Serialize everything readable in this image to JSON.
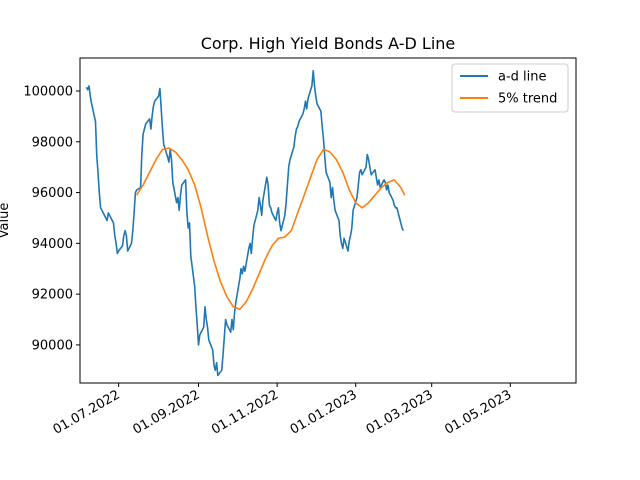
{
  "chart_data": {
    "type": "line",
    "title": "Corp. High Yield Bonds A-D Line",
    "xlabel": "",
    "ylabel": "Value",
    "x_range": [
      "2022-06-01",
      "2023-06-21"
    ],
    "ylim": [
      88500,
      101300
    ],
    "grid": false,
    "legend_position": "top-right",
    "x_ticks": [
      {
        "date": "2022-07-01",
        "label": "01.07.2022"
      },
      {
        "date": "2022-09-01",
        "label": "01.09.2022"
      },
      {
        "date": "2022-11-01",
        "label": "01.11.2022"
      },
      {
        "date": "2023-01-01",
        "label": "01.01.2023"
      },
      {
        "date": "2023-03-01",
        "label": "01.03.2023"
      },
      {
        "date": "2023-05-01",
        "label": "01.05.2023"
      }
    ],
    "y_ticks": [
      {
        "value": 90000,
        "label": "90000"
      },
      {
        "value": 92000,
        "label": "92000"
      },
      {
        "value": 94000,
        "label": "94000"
      },
      {
        "value": 96000,
        "label": "96000"
      },
      {
        "value": 98000,
        "label": "98000"
      },
      {
        "value": 100000,
        "label": "100000"
      }
    ],
    "series": [
      {
        "name": "a-d line",
        "color": "#1f77b4",
        "points": [
          [
            "2022-06-06",
            100150
          ],
          [
            "2022-06-07",
            100050
          ],
          [
            "2022-06-08",
            100200
          ],
          [
            "2022-06-09",
            99800
          ],
          [
            "2022-06-10",
            99500
          ],
          [
            "2022-06-13",
            98800
          ],
          [
            "2022-06-14",
            97500
          ],
          [
            "2022-06-15",
            96800
          ],
          [
            "2022-06-16",
            96000
          ],
          [
            "2022-06-17",
            95400
          ],
          [
            "2022-06-20",
            95100
          ],
          [
            "2022-06-21",
            95000
          ],
          [
            "2022-06-22",
            94900
          ],
          [
            "2022-06-23",
            95200
          ],
          [
            "2022-06-24",
            95100
          ],
          [
            "2022-06-27",
            94800
          ],
          [
            "2022-06-28",
            94300
          ],
          [
            "2022-06-29",
            94000
          ],
          [
            "2022-06-30",
            93600
          ],
          [
            "2022-07-01",
            93700
          ],
          [
            "2022-07-04",
            93900
          ],
          [
            "2022-07-05",
            94300
          ],
          [
            "2022-07-06",
            94500
          ],
          [
            "2022-07-07",
            94300
          ],
          [
            "2022-07-08",
            93700
          ],
          [
            "2022-07-11",
            94000
          ],
          [
            "2022-07-12",
            94500
          ],
          [
            "2022-07-13",
            95200
          ],
          [
            "2022-07-14",
            96000
          ],
          [
            "2022-07-15",
            96100
          ],
          [
            "2022-07-18",
            96200
          ],
          [
            "2022-07-19",
            97500
          ],
          [
            "2022-07-20",
            98300
          ],
          [
            "2022-07-21",
            98500
          ],
          [
            "2022-07-22",
            98700
          ],
          [
            "2022-07-25",
            98900
          ],
          [
            "2022-07-26",
            98500
          ],
          [
            "2022-07-27",
            99000
          ],
          [
            "2022-07-28",
            99400
          ],
          [
            "2022-07-29",
            99600
          ],
          [
            "2022-08-01",
            99800
          ],
          [
            "2022-08-02",
            100100
          ],
          [
            "2022-08-03",
            99300
          ],
          [
            "2022-08-04",
            98500
          ],
          [
            "2022-08-05",
            97900
          ],
          [
            "2022-08-08",
            97400
          ],
          [
            "2022-08-09",
            97200
          ],
          [
            "2022-08-10",
            97700
          ],
          [
            "2022-08-11",
            97300
          ],
          [
            "2022-08-12",
            96400
          ],
          [
            "2022-08-15",
            95600
          ],
          [
            "2022-08-16",
            95800
          ],
          [
            "2022-08-17",
            95300
          ],
          [
            "2022-08-18",
            95900
          ],
          [
            "2022-08-19",
            96300
          ],
          [
            "2022-08-22",
            96500
          ],
          [
            "2022-08-23",
            95200
          ],
          [
            "2022-08-24",
            94600
          ],
          [
            "2022-08-25",
            94800
          ],
          [
            "2022-08-26",
            93500
          ],
          [
            "2022-08-29",
            92300
          ],
          [
            "2022-08-30",
            91500
          ],
          [
            "2022-08-31",
            90800
          ],
          [
            "2022-09-01",
            90000
          ],
          [
            "2022-09-02",
            90400
          ],
          [
            "2022-09-05",
            90700
          ],
          [
            "2022-09-06",
            91500
          ],
          [
            "2022-09-07",
            91000
          ],
          [
            "2022-09-08",
            90700
          ],
          [
            "2022-09-09",
            90200
          ],
          [
            "2022-09-12",
            89800
          ],
          [
            "2022-09-13",
            89200
          ],
          [
            "2022-09-14",
            89000
          ],
          [
            "2022-09-15",
            89300
          ],
          [
            "2022-09-16",
            88800
          ],
          [
            "2022-09-19",
            89000
          ],
          [
            "2022-09-20",
            89600
          ],
          [
            "2022-09-21",
            90300
          ],
          [
            "2022-09-22",
            91000
          ],
          [
            "2022-09-23",
            90800
          ],
          [
            "2022-09-26",
            90500
          ],
          [
            "2022-09-27",
            91000
          ],
          [
            "2022-09-28",
            90600
          ],
          [
            "2022-09-29",
            91300
          ],
          [
            "2022-09-30",
            91700
          ],
          [
            "2022-10-03",
            92600
          ],
          [
            "2022-10-04",
            93000
          ],
          [
            "2022-10-05",
            92800
          ],
          [
            "2022-10-06",
            93100
          ],
          [
            "2022-10-07",
            92900
          ],
          [
            "2022-10-10",
            93800
          ],
          [
            "2022-10-11",
            94000
          ],
          [
            "2022-10-12",
            93600
          ],
          [
            "2022-10-13",
            94200
          ],
          [
            "2022-10-14",
            94700
          ],
          [
            "2022-10-17",
            95300
          ],
          [
            "2022-10-18",
            95800
          ],
          [
            "2022-10-19",
            95500
          ],
          [
            "2022-10-20",
            95100
          ],
          [
            "2022-10-21",
            95700
          ],
          [
            "2022-10-24",
            96600
          ],
          [
            "2022-10-25",
            96300
          ],
          [
            "2022-10-26",
            95500
          ],
          [
            "2022-10-27",
            95400
          ],
          [
            "2022-10-28",
            95200
          ],
          [
            "2022-10-31",
            94900
          ],
          [
            "2022-11-01",
            95200
          ],
          [
            "2022-11-02",
            95400
          ],
          [
            "2022-11-03",
            94800
          ],
          [
            "2022-11-04",
            94500
          ],
          [
            "2022-11-07",
            95100
          ],
          [
            "2022-11-08",
            95600
          ],
          [
            "2022-11-09",
            96300
          ],
          [
            "2022-11-10",
            97000
          ],
          [
            "2022-11-11",
            97300
          ],
          [
            "2022-11-14",
            97800
          ],
          [
            "2022-11-15",
            98200
          ],
          [
            "2022-11-16",
            98500
          ],
          [
            "2022-11-17",
            98600
          ],
          [
            "2022-11-18",
            98800
          ],
          [
            "2022-11-21",
            99100
          ],
          [
            "2022-11-22",
            99300
          ],
          [
            "2022-11-23",
            99600
          ],
          [
            "2022-11-24",
            99300
          ],
          [
            "2022-11-25",
            99700
          ],
          [
            "2022-11-28",
            100200
          ],
          [
            "2022-11-29",
            100800
          ],
          [
            "2022-11-30",
            100200
          ],
          [
            "2022-12-01",
            99800
          ],
          [
            "2022-12-02",
            99500
          ],
          [
            "2022-12-05",
            99200
          ],
          [
            "2022-12-06",
            98600
          ],
          [
            "2022-12-07",
            98100
          ],
          [
            "2022-12-08",
            97400
          ],
          [
            "2022-12-09",
            96800
          ],
          [
            "2022-12-12",
            96400
          ],
          [
            "2022-12-13",
            95800
          ],
          [
            "2022-12-14",
            96200
          ],
          [
            "2022-12-15",
            95700
          ],
          [
            "2022-12-16",
            95300
          ],
          [
            "2022-12-19",
            94900
          ],
          [
            "2022-12-20",
            94300
          ],
          [
            "2022-12-21",
            94000
          ],
          [
            "2022-12-22",
            93800
          ],
          [
            "2022-12-23",
            94200
          ],
          [
            "2022-12-26",
            93700
          ],
          [
            "2022-12-27",
            94100
          ],
          [
            "2022-12-28",
            94300
          ],
          [
            "2022-12-29",
            94600
          ],
          [
            "2022-12-30",
            95300
          ],
          [
            "2023-01-02",
            95800
          ],
          [
            "2023-01-03",
            96300
          ],
          [
            "2023-01-04",
            96800
          ],
          [
            "2023-01-05",
            96900
          ],
          [
            "2023-01-06",
            96700
          ],
          [
            "2023-01-09",
            97000
          ],
          [
            "2023-01-10",
            97500
          ],
          [
            "2023-01-11",
            97300
          ],
          [
            "2023-01-12",
            97000
          ],
          [
            "2023-01-13",
            96700
          ],
          [
            "2023-01-16",
            96900
          ],
          [
            "2023-01-17",
            96600
          ],
          [
            "2023-01-18",
            96300
          ],
          [
            "2023-01-19",
            96500
          ],
          [
            "2023-01-20",
            96200
          ],
          [
            "2023-01-23",
            96500
          ],
          [
            "2023-01-24",
            96400
          ],
          [
            "2023-01-25",
            96100
          ],
          [
            "2023-01-26",
            96300
          ],
          [
            "2023-01-27",
            96000
          ],
          [
            "2023-01-30",
            95700
          ],
          [
            "2023-01-31",
            95500
          ],
          [
            "2023-02-01",
            95400
          ],
          [
            "2023-02-02",
            95400
          ],
          [
            "2023-02-03",
            95200
          ],
          [
            "2023-02-06",
            94600
          ],
          [
            "2023-02-07",
            94500
          ]
        ]
      },
      {
        "name": "5% trend",
        "color": "#ff7f0e",
        "points": [
          [
            "2022-07-15",
            95900
          ],
          [
            "2022-07-20",
            96300
          ],
          [
            "2022-07-25",
            96800
          ],
          [
            "2022-07-30",
            97300
          ],
          [
            "2022-08-04",
            97700
          ],
          [
            "2022-08-09",
            97750
          ],
          [
            "2022-08-14",
            97600
          ],
          [
            "2022-08-19",
            97300
          ],
          [
            "2022-08-24",
            96900
          ],
          [
            "2022-08-29",
            96300
          ],
          [
            "2022-09-03",
            95400
          ],
          [
            "2022-09-08",
            94300
          ],
          [
            "2022-09-13",
            93300
          ],
          [
            "2022-09-18",
            92500
          ],
          [
            "2022-09-23",
            91900
          ],
          [
            "2022-09-28",
            91500
          ],
          [
            "2022-10-03",
            91400
          ],
          [
            "2022-10-08",
            91700
          ],
          [
            "2022-10-13",
            92200
          ],
          [
            "2022-10-18",
            92800
          ],
          [
            "2022-10-23",
            93400
          ],
          [
            "2022-10-28",
            93900
          ],
          [
            "2022-11-02",
            94200
          ],
          [
            "2022-11-07",
            94250
          ],
          [
            "2022-11-12",
            94500
          ],
          [
            "2022-11-17",
            95200
          ],
          [
            "2022-11-22",
            95900
          ],
          [
            "2022-11-27",
            96600
          ],
          [
            "2022-12-02",
            97300
          ],
          [
            "2022-12-07",
            97700
          ],
          [
            "2022-12-12",
            97600
          ],
          [
            "2022-12-17",
            97300
          ],
          [
            "2022-12-22",
            96800
          ],
          [
            "2022-12-27",
            96100
          ],
          [
            "2023-01-01",
            95600
          ],
          [
            "2023-01-06",
            95400
          ],
          [
            "2023-01-11",
            95600
          ],
          [
            "2023-01-16",
            95900
          ],
          [
            "2023-01-21",
            96200
          ],
          [
            "2023-01-26",
            96400
          ],
          [
            "2023-01-31",
            96500
          ],
          [
            "2023-02-05",
            96200
          ],
          [
            "2023-02-08",
            95900
          ]
        ]
      }
    ]
  }
}
